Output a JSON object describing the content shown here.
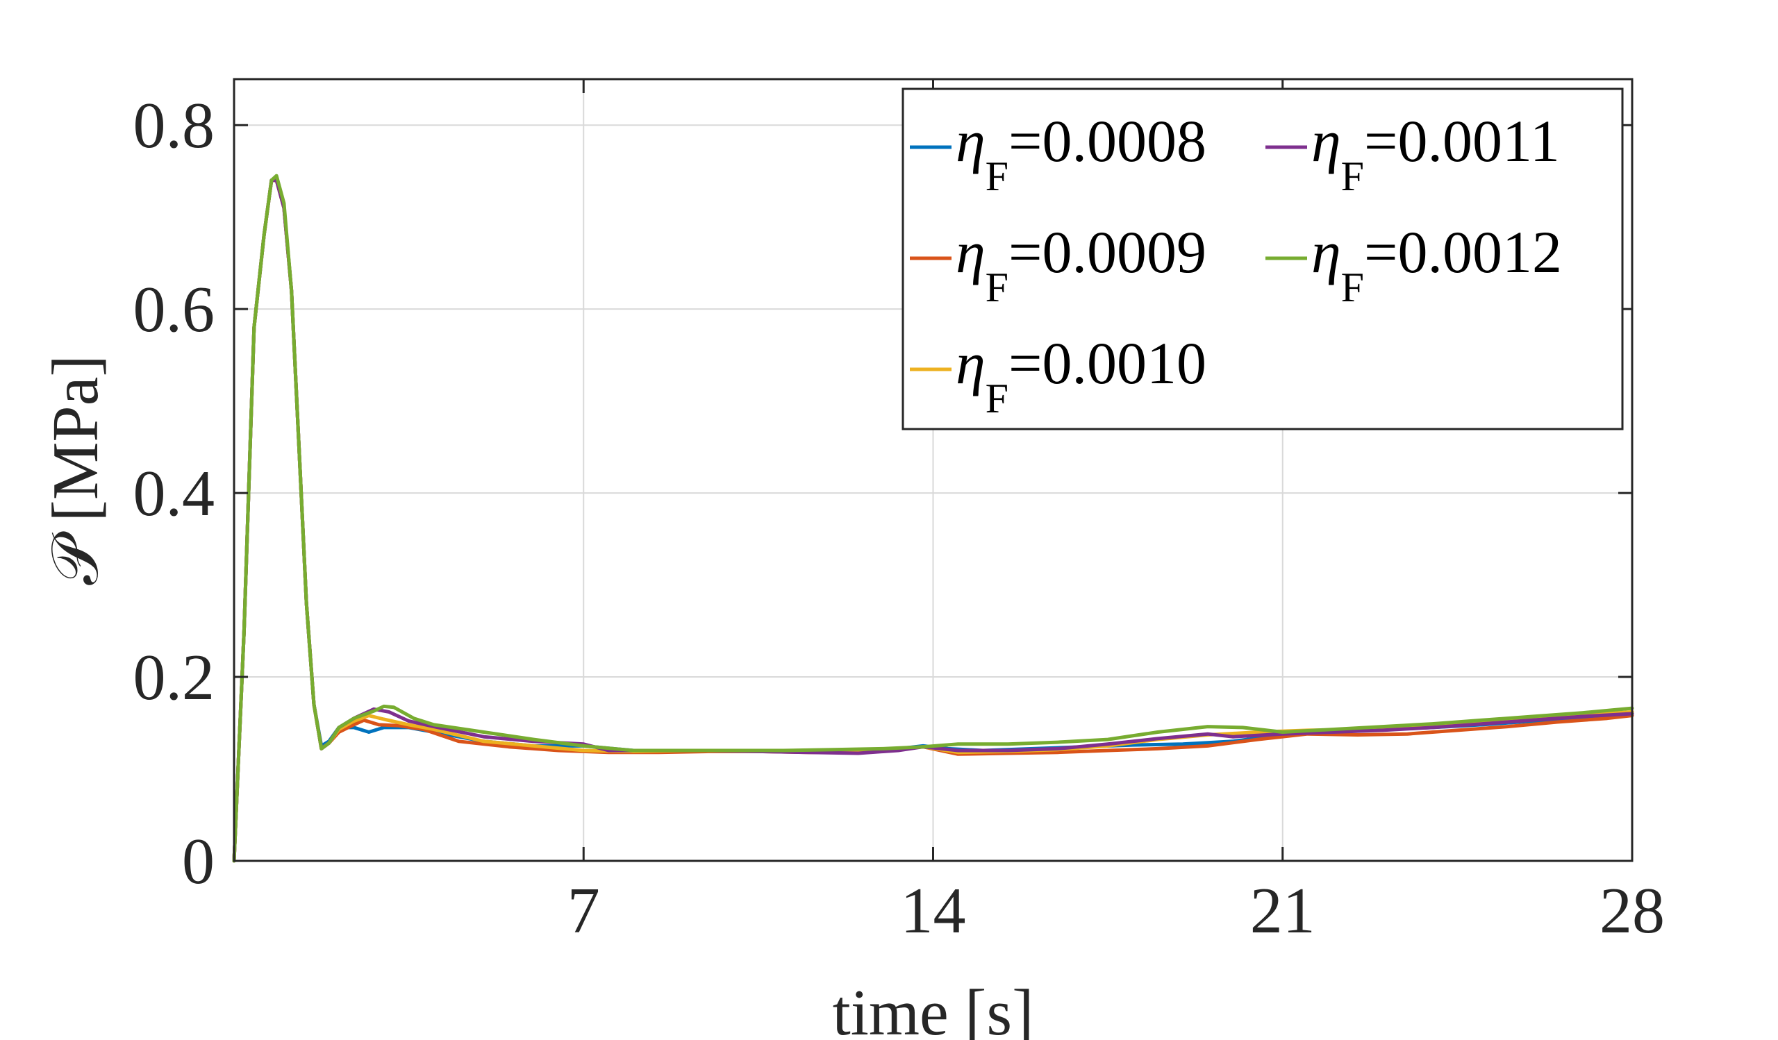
{
  "chart_data": {
    "type": "line",
    "title": "",
    "xlabel": "time [s]",
    "ylabel": "𝒫 [MPa]",
    "xlim": [
      0,
      28
    ],
    "ylim": [
      0,
      0.85
    ],
    "xticks": [
      7,
      14,
      21,
      28
    ],
    "xtick_labels": [
      "7",
      "14",
      "21",
      "28"
    ],
    "yticks": [
      0,
      0.2,
      0.4,
      0.6,
      0.8
    ],
    "ytick_labels": [
      "0",
      "0.2",
      "0.4",
      "0.6",
      "0.8"
    ],
    "grid": true,
    "legend_position": "top-right",
    "series": [
      {
        "name": "ηF=0.0008",
        "label_main": "η",
        "label_sub": "F",
        "label_value": "=0.0008",
        "color": "#0072BD",
        "points": [
          [
            0,
            0
          ],
          [
            0.2,
            0.25
          ],
          [
            0.4,
            0.58
          ],
          [
            0.6,
            0.68
          ],
          [
            0.75,
            0.74
          ],
          [
            0.85,
            0.74
          ],
          [
            1.0,
            0.71
          ],
          [
            1.15,
            0.62
          ],
          [
            1.3,
            0.45
          ],
          [
            1.45,
            0.28
          ],
          [
            1.6,
            0.17
          ],
          [
            1.75,
            0.125
          ],
          [
            1.9,
            0.13
          ],
          [
            2.1,
            0.145
          ],
          [
            2.4,
            0.145
          ],
          [
            2.7,
            0.14
          ],
          [
            3.0,
            0.145
          ],
          [
            3.5,
            0.145
          ],
          [
            4.0,
            0.14
          ],
          [
            5.0,
            0.13
          ],
          [
            6.0,
            0.125
          ],
          [
            7.0,
            0.125
          ],
          [
            8.0,
            0.12
          ],
          [
            9.0,
            0.12
          ],
          [
            10.0,
            0.12
          ],
          [
            11.0,
            0.12
          ],
          [
            12.0,
            0.12
          ],
          [
            13.0,
            0.12
          ],
          [
            13.8,
            0.125
          ],
          [
            14.3,
            0.122
          ],
          [
            15.0,
            0.12
          ],
          [
            16.0,
            0.122
          ],
          [
            17.0,
            0.124
          ],
          [
            18.0,
            0.126
          ],
          [
            19.0,
            0.127
          ],
          [
            20.0,
            0.13
          ],
          [
            21.0,
            0.137
          ],
          [
            22.0,
            0.14
          ],
          [
            23.0,
            0.143
          ],
          [
            24.0,
            0.145
          ],
          [
            25.0,
            0.148
          ],
          [
            26.0,
            0.152
          ],
          [
            27.0,
            0.156
          ],
          [
            28.0,
            0.16
          ]
        ]
      },
      {
        "name": "ηF=0.0009",
        "label_main": "η",
        "label_sub": "F",
        "label_value": "=0.0009",
        "color": "#D95319",
        "points": [
          [
            0,
            0
          ],
          [
            0.2,
            0.25
          ],
          [
            0.4,
            0.58
          ],
          [
            0.6,
            0.68
          ],
          [
            0.75,
            0.74
          ],
          [
            0.85,
            0.74
          ],
          [
            1.0,
            0.71
          ],
          [
            1.15,
            0.62
          ],
          [
            1.3,
            0.45
          ],
          [
            1.45,
            0.28
          ],
          [
            1.6,
            0.17
          ],
          [
            1.75,
            0.122
          ],
          [
            1.9,
            0.128
          ],
          [
            2.1,
            0.14
          ],
          [
            2.4,
            0.148
          ],
          [
            2.6,
            0.153
          ],
          [
            2.9,
            0.148
          ],
          [
            3.3,
            0.147
          ],
          [
            3.8,
            0.143
          ],
          [
            4.5,
            0.13
          ],
          [
            5.5,
            0.124
          ],
          [
            6.5,
            0.12
          ],
          [
            7.5,
            0.118
          ],
          [
            8.5,
            0.118
          ],
          [
            9.5,
            0.119
          ],
          [
            10.5,
            0.119
          ],
          [
            11.5,
            0.118
          ],
          [
            12.5,
            0.118
          ],
          [
            13.8,
            0.124
          ],
          [
            14.5,
            0.116
          ],
          [
            15.5,
            0.117
          ],
          [
            16.5,
            0.118
          ],
          [
            17.5,
            0.12
          ],
          [
            18.5,
            0.122
          ],
          [
            19.5,
            0.125
          ],
          [
            20.5,
            0.132
          ],
          [
            21.5,
            0.138
          ],
          [
            22.5,
            0.137
          ],
          [
            23.5,
            0.138
          ],
          [
            24.5,
            0.142
          ],
          [
            25.5,
            0.146
          ],
          [
            26.5,
            0.151
          ],
          [
            27.5,
            0.155
          ],
          [
            28.0,
            0.158
          ]
        ]
      },
      {
        "name": "ηF=0.0010",
        "label_main": "η",
        "label_sub": "F",
        "label_value": "=0.0010",
        "color": "#EDB120",
        "points": [
          [
            0,
            0
          ],
          [
            0.2,
            0.25
          ],
          [
            0.4,
            0.58
          ],
          [
            0.6,
            0.68
          ],
          [
            0.75,
            0.74
          ],
          [
            0.85,
            0.74
          ],
          [
            1.0,
            0.71
          ],
          [
            1.15,
            0.62
          ],
          [
            1.3,
            0.45
          ],
          [
            1.45,
            0.28
          ],
          [
            1.6,
            0.17
          ],
          [
            1.75,
            0.122
          ],
          [
            1.9,
            0.128
          ],
          [
            2.1,
            0.143
          ],
          [
            2.4,
            0.152
          ],
          [
            2.7,
            0.158
          ],
          [
            3.0,
            0.154
          ],
          [
            3.5,
            0.148
          ],
          [
            4.0,
            0.143
          ],
          [
            5.0,
            0.13
          ],
          [
            6.0,
            0.125
          ],
          [
            7.0,
            0.12
          ],
          [
            8.0,
            0.119
          ],
          [
            9.0,
            0.12
          ],
          [
            10.0,
            0.12
          ],
          [
            11.0,
            0.119
          ],
          [
            12.0,
            0.119
          ],
          [
            13.0,
            0.12
          ],
          [
            13.8,
            0.124
          ],
          [
            14.5,
            0.118
          ],
          [
            15.5,
            0.119
          ],
          [
            16.5,
            0.121
          ],
          [
            17.5,
            0.125
          ],
          [
            18.5,
            0.132
          ],
          [
            19.5,
            0.137
          ],
          [
            20.5,
            0.14
          ],
          [
            21.5,
            0.142
          ],
          [
            22.5,
            0.143
          ],
          [
            23.5,
            0.145
          ],
          [
            24.5,
            0.148
          ],
          [
            25.5,
            0.152
          ],
          [
            26.5,
            0.156
          ],
          [
            27.5,
            0.16
          ],
          [
            28.0,
            0.162
          ]
        ]
      },
      {
        "name": "ηF=0.0011",
        "label_main": "η",
        "label_sub": "F",
        "label_value": "=0.0011",
        "color": "#7E2F8E",
        "points": [
          [
            0,
            0
          ],
          [
            0.2,
            0.25
          ],
          [
            0.4,
            0.58
          ],
          [
            0.6,
            0.68
          ],
          [
            0.75,
            0.74
          ],
          [
            0.85,
            0.74
          ],
          [
            1.0,
            0.71
          ],
          [
            1.15,
            0.62
          ],
          [
            1.3,
            0.45
          ],
          [
            1.45,
            0.28
          ],
          [
            1.6,
            0.17
          ],
          [
            1.75,
            0.122
          ],
          [
            1.9,
            0.128
          ],
          [
            2.1,
            0.145
          ],
          [
            2.4,
            0.155
          ],
          [
            2.8,
            0.165
          ],
          [
            3.1,
            0.162
          ],
          [
            3.5,
            0.152
          ],
          [
            4.0,
            0.146
          ],
          [
            5.0,
            0.135
          ],
          [
            6.0,
            0.13
          ],
          [
            7.0,
            0.127
          ],
          [
            7.5,
            0.12
          ],
          [
            8.5,
            0.12
          ],
          [
            9.5,
            0.12
          ],
          [
            10.5,
            0.119
          ],
          [
            11.5,
            0.118
          ],
          [
            12.5,
            0.117
          ],
          [
            13.3,
            0.12
          ],
          [
            13.8,
            0.124
          ],
          [
            14.5,
            0.12
          ],
          [
            15.5,
            0.12
          ],
          [
            16.5,
            0.122
          ],
          [
            17.5,
            0.127
          ],
          [
            18.5,
            0.133
          ],
          [
            19.5,
            0.138
          ],
          [
            20.0,
            0.135
          ],
          [
            21.0,
            0.138
          ],
          [
            22.0,
            0.14
          ],
          [
            23.0,
            0.142
          ],
          [
            24.0,
            0.145
          ],
          [
            25.0,
            0.149
          ],
          [
            26.0,
            0.153
          ],
          [
            27.0,
            0.157
          ],
          [
            28.0,
            0.16
          ]
        ]
      },
      {
        "name": "ηF=0.0012",
        "label_main": "η",
        "label_sub": "F",
        "label_value": "=0.0012",
        "color": "#77AC30",
        "points": [
          [
            0,
            0
          ],
          [
            0.2,
            0.25
          ],
          [
            0.4,
            0.58
          ],
          [
            0.6,
            0.68
          ],
          [
            0.75,
            0.74
          ],
          [
            0.85,
            0.745
          ],
          [
            1.0,
            0.715
          ],
          [
            1.15,
            0.62
          ],
          [
            1.3,
            0.45
          ],
          [
            1.45,
            0.28
          ],
          [
            1.6,
            0.17
          ],
          [
            1.75,
            0.122
          ],
          [
            1.9,
            0.128
          ],
          [
            2.1,
            0.145
          ],
          [
            2.4,
            0.155
          ],
          [
            2.8,
            0.163
          ],
          [
            3.0,
            0.168
          ],
          [
            3.2,
            0.167
          ],
          [
            3.6,
            0.155
          ],
          [
            4.0,
            0.148
          ],
          [
            5.0,
            0.14
          ],
          [
            6.0,
            0.132
          ],
          [
            7.0,
            0.125
          ],
          [
            8.0,
            0.12
          ],
          [
            9.0,
            0.12
          ],
          [
            10.0,
            0.12
          ],
          [
            11.0,
            0.12
          ],
          [
            12.0,
            0.121
          ],
          [
            13.0,
            0.122
          ],
          [
            13.8,
            0.124
          ],
          [
            14.5,
            0.127
          ],
          [
            15.5,
            0.127
          ],
          [
            16.5,
            0.129
          ],
          [
            17.5,
            0.132
          ],
          [
            18.5,
            0.14
          ],
          [
            19.5,
            0.146
          ],
          [
            20.2,
            0.145
          ],
          [
            21.0,
            0.14
          ],
          [
            22.0,
            0.143
          ],
          [
            23.0,
            0.146
          ],
          [
            24.0,
            0.149
          ],
          [
            25.0,
            0.153
          ],
          [
            26.0,
            0.157
          ],
          [
            27.0,
            0.161
          ],
          [
            28.0,
            0.166
          ]
        ]
      }
    ]
  }
}
